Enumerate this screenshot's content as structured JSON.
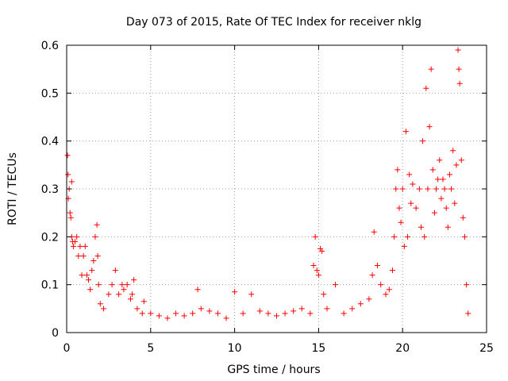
{
  "chart_data": {
    "type": "scatter",
    "title": "Day 073 of 2015, Rate Of TEC Index for receiver nklg",
    "xlabel": "GPS time / hours",
    "ylabel": "ROTI / TECUs",
    "xlim": [
      0,
      25
    ],
    "ylim": [
      0,
      0.6
    ],
    "x_ticks": [
      "0",
      "5",
      "10",
      "15",
      "20",
      "25"
    ],
    "y_ticks": [
      "0",
      "0.1",
      "0.2",
      "0.3",
      "0.4",
      "0.5",
      "0.6"
    ],
    "grid": true,
    "marker": "plus",
    "color": "#ff0000",
    "series": [
      {
        "points": [
          [
            0.05,
            0.37
          ],
          [
            0.08,
            0.33
          ],
          [
            0.1,
            0.28
          ],
          [
            0.15,
            0.3
          ],
          [
            0.2,
            0.25
          ],
          [
            0.25,
            0.24
          ],
          [
            0.3,
            0.315
          ],
          [
            0.3,
            0.2
          ],
          [
            0.35,
            0.19
          ],
          [
            0.4,
            0.18
          ],
          [
            0.5,
            0.19
          ],
          [
            0.6,
            0.2
          ],
          [
            0.7,
            0.16
          ],
          [
            0.8,
            0.18
          ],
          [
            0.9,
            0.12
          ],
          [
            1.0,
            0.16
          ],
          [
            1.1,
            0.18
          ],
          [
            1.2,
            0.12
          ],
          [
            1.3,
            0.11
          ],
          [
            1.4,
            0.09
          ],
          [
            1.5,
            0.13
          ],
          [
            1.6,
            0.15
          ],
          [
            1.7,
            0.2
          ],
          [
            1.8,
            0.225
          ],
          [
            1.85,
            0.16
          ],
          [
            1.9,
            0.1
          ],
          [
            2.0,
            0.06
          ],
          [
            2.2,
            0.05
          ],
          [
            2.5,
            0.08
          ],
          [
            2.7,
            0.1
          ],
          [
            2.9,
            0.13
          ],
          [
            3.1,
            0.08
          ],
          [
            3.3,
            0.1
          ],
          [
            3.4,
            0.09
          ],
          [
            3.6,
            0.1
          ],
          [
            3.8,
            0.07
          ],
          [
            3.9,
            0.08
          ],
          [
            4.0,
            0.11
          ],
          [
            4.2,
            0.05
          ],
          [
            4.5,
            0.04
          ],
          [
            4.6,
            0.065
          ],
          [
            5.0,
            0.04
          ],
          [
            5.5,
            0.035
          ],
          [
            6.0,
            0.03
          ],
          [
            6.5,
            0.04
          ],
          [
            7.0,
            0.035
          ],
          [
            7.5,
            0.04
          ],
          [
            7.8,
            0.09
          ],
          [
            8.0,
            0.05
          ],
          [
            8.5,
            0.045
          ],
          [
            9.0,
            0.04
          ],
          [
            9.5,
            0.03
          ],
          [
            10.0,
            0.085
          ],
          [
            10.5,
            0.04
          ],
          [
            11.0,
            0.08
          ],
          [
            11.5,
            0.045
          ],
          [
            12.0,
            0.04
          ],
          [
            12.5,
            0.035
          ],
          [
            13.0,
            0.04
          ],
          [
            13.5,
            0.045
          ],
          [
            14.0,
            0.05
          ],
          [
            14.5,
            0.04
          ],
          [
            14.7,
            0.14
          ],
          [
            14.8,
            0.2
          ],
          [
            14.9,
            0.13
          ],
          [
            15.0,
            0.12
          ],
          [
            15.1,
            0.175
          ],
          [
            15.2,
            0.17
          ],
          [
            15.3,
            0.08
          ],
          [
            15.5,
            0.05
          ],
          [
            16.0,
            0.1
          ],
          [
            16.5,
            0.04
          ],
          [
            17.0,
            0.05
          ],
          [
            17.5,
            0.06
          ],
          [
            18.0,
            0.07
          ],
          [
            18.2,
            0.12
          ],
          [
            18.3,
            0.21
          ],
          [
            18.5,
            0.14
          ],
          [
            18.7,
            0.1
          ],
          [
            19.0,
            0.08
          ],
          [
            19.2,
            0.09
          ],
          [
            19.4,
            0.13
          ],
          [
            19.5,
            0.2
          ],
          [
            19.6,
            0.3
          ],
          [
            19.7,
            0.34
          ],
          [
            19.8,
            0.26
          ],
          [
            19.9,
            0.23
          ],
          [
            20.0,
            0.3
          ],
          [
            20.1,
            0.18
          ],
          [
            20.2,
            0.42
          ],
          [
            20.3,
            0.2
          ],
          [
            20.4,
            0.33
          ],
          [
            20.5,
            0.27
          ],
          [
            20.6,
            0.31
          ],
          [
            20.8,
            0.26
          ],
          [
            21.0,
            0.3
          ],
          [
            21.1,
            0.22
          ],
          [
            21.2,
            0.4
          ],
          [
            21.3,
            0.2
          ],
          [
            21.4,
            0.51
          ],
          [
            21.5,
            0.3
          ],
          [
            21.6,
            0.43
          ],
          [
            21.7,
            0.55
          ],
          [
            21.8,
            0.34
          ],
          [
            21.9,
            0.25
          ],
          [
            22.0,
            0.3
          ],
          [
            22.1,
            0.32
          ],
          [
            22.2,
            0.36
          ],
          [
            22.3,
            0.28
          ],
          [
            22.4,
            0.32
          ],
          [
            22.5,
            0.3
          ],
          [
            22.6,
            0.26
          ],
          [
            22.7,
            0.22
          ],
          [
            22.8,
            0.33
          ],
          [
            22.9,
            0.3
          ],
          [
            23.0,
            0.38
          ],
          [
            23.1,
            0.27
          ],
          [
            23.2,
            0.35
          ],
          [
            23.3,
            0.59
          ],
          [
            23.35,
            0.55
          ],
          [
            23.4,
            0.52
          ],
          [
            23.5,
            0.36
          ],
          [
            23.6,
            0.24
          ],
          [
            23.7,
            0.2
          ],
          [
            23.8,
            0.1
          ],
          [
            23.9,
            0.04
          ]
        ]
      }
    ]
  }
}
